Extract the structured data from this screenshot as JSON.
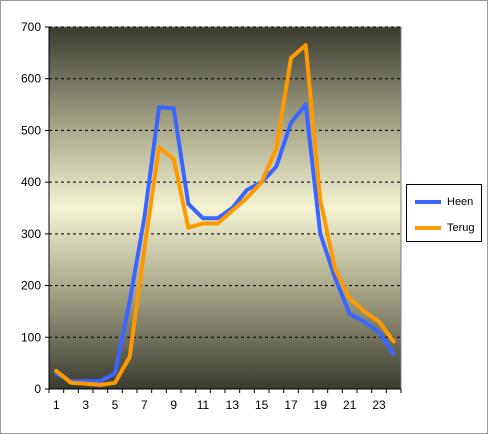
{
  "chart_data": {
    "type": "line",
    "x": [
      1,
      2,
      3,
      4,
      5,
      6,
      7,
      8,
      9,
      10,
      11,
      12,
      13,
      14,
      15,
      16,
      17,
      18,
      19,
      20,
      21,
      22,
      23,
      24
    ],
    "xticks": [
      "1",
      "3",
      "5",
      "7",
      "9",
      "11",
      "13",
      "15",
      "17",
      "19",
      "21",
      "23"
    ],
    "yticks": [
      "0",
      "100",
      "200",
      "300",
      "400",
      "500",
      "600",
      "700"
    ],
    "ylim": [
      0,
      700
    ],
    "xlim": [
      1,
      24
    ],
    "grid": true,
    "legend_position": "right",
    "series": [
      {
        "name": "Heen",
        "color": "#3a66ff",
        "values": [
          30,
          15,
          15,
          15,
          30,
          170,
          330,
          545,
          543,
          358,
          330,
          330,
          350,
          385,
          400,
          430,
          515,
          550,
          300,
          215,
          145,
          130,
          110,
          68
        ]
      },
      {
        "name": "Terug",
        "color": "#ff9900",
        "values": [
          35,
          12,
          10,
          8,
          12,
          62,
          270,
          467,
          445,
          312,
          320,
          320,
          345,
          370,
          400,
          465,
          640,
          665,
          365,
          232,
          175,
          150,
          130,
          92
        ]
      }
    ]
  }
}
